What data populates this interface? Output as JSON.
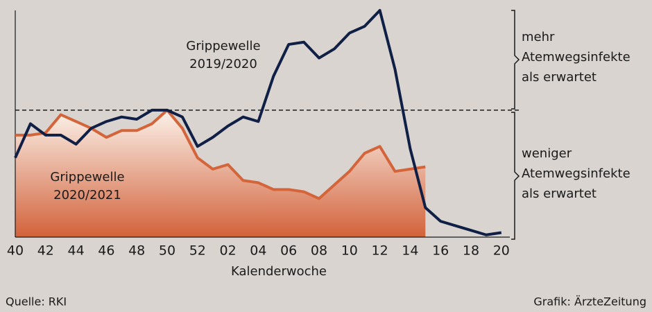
{
  "chart_data": {
    "type": "line",
    "xlabel": "Kalenderwoche",
    "categories": [
      "40",
      null,
      "42",
      null,
      "44",
      null,
      "46",
      null,
      "48",
      null,
      "50",
      null,
      "52",
      null,
      "02",
      null,
      "04",
      null,
      "06",
      null,
      "08",
      null,
      "10",
      null,
      "12",
      null,
      "14",
      null,
      "16",
      null,
      "18",
      null,
      "20"
    ],
    "series": [
      {
        "name": "Grippewelle 2019/2020",
        "color": "#0f1f45",
        "label_lines": [
          "Grippewelle",
          "2019/2020"
        ],
        "values": [
          35,
          50,
          45,
          45,
          41,
          48,
          51,
          53,
          52,
          56,
          56,
          53,
          40,
          44,
          49,
          53,
          51,
          71,
          85,
          86,
          79,
          83,
          90,
          93,
          100,
          74,
          39,
          13,
          7,
          5,
          3,
          1,
          2
        ]
      },
      {
        "name": "Grippewelle 2020/2021",
        "color": "#d4643a",
        "label_lines": [
          "Grippewelle",
          "2020/2021"
        ],
        "values": [
          45,
          45,
          46,
          54,
          51,
          48,
          44,
          47,
          47,
          50,
          56,
          48,
          35,
          30,
          32,
          25,
          24,
          21,
          21,
          20,
          17,
          23,
          29,
          37,
          40,
          29,
          30,
          31,
          null,
          null,
          null,
          null,
          null
        ]
      }
    ],
    "ylim": [
      0,
      100
    ],
    "threshold": 56,
    "upper_label": [
      "mehr",
      "Atemwegsinfekte",
      "als erwartet"
    ],
    "lower_label": [
      "weniger",
      "Atemwegsinfekte",
      "als erwartet"
    ],
    "source": "Quelle: RKI",
    "credit": "Grafik: ÄrzteZeitung"
  }
}
